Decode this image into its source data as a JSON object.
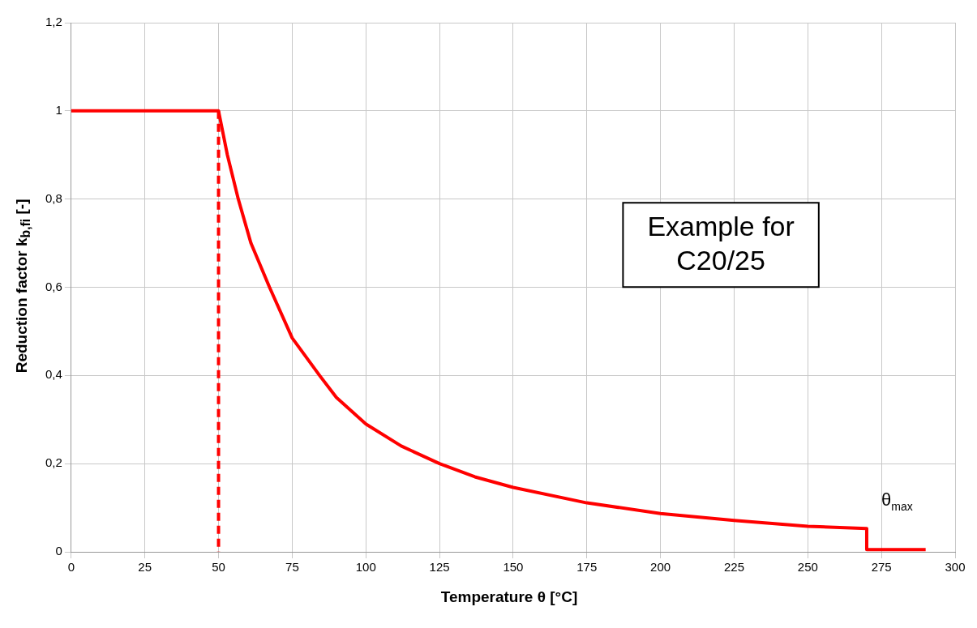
{
  "chart_data": {
    "type": "line",
    "xlabel": "Temperature θ [°C]",
    "ylabel": "Reduction factor k$_{b,fi}$ [-]",
    "xlim": [
      0,
      300
    ],
    "xticks": [
      0,
      25,
      50,
      75,
      100,
      125,
      150,
      175,
      200,
      225,
      250,
      275,
      300
    ],
    "ylim": [
      0,
      1.2
    ],
    "yticks": [
      0,
      {
        "value": 0.2,
        "label": "0,2"
      },
      {
        "value": 0.4,
        "label": "0,4"
      },
      {
        "value": 0.6,
        "label": "0,6"
      },
      {
        "value": 0.8,
        "label": "0,8"
      },
      1,
      {
        "value": 1.2,
        "label": "1,2"
      }
    ],
    "grid": true,
    "marker": "none",
    "series": [
      {
        "color": "#ff0000",
        "line_style": "solid",
        "x": [
          0,
          50,
          53,
          56.7,
          61,
          67.3,
          75,
          84.3,
          90,
          100,
          112,
          125,
          137,
          150,
          175,
          200,
          225,
          250,
          270,
          270,
          290
        ],
        "values": [
          1,
          1,
          0.9,
          0.8,
          0.7,
          0.6,
          0.485,
          0.4,
          0.35,
          0.29,
          0.24,
          0.2,
          0.17,
          0.146,
          0.111,
          0.087,
          0.071,
          0.058,
          0.053,
          0.005,
          0.005
        ]
      },
      {
        "color": "#ff0000",
        "line_style": "dashed",
        "x": [
          50,
          50
        ],
        "values": [
          1,
          0
        ]
      }
    ],
    "annotations": [
      "Example for C20/25",
      {
        "text": "θ$_{max}$",
        "x": 270,
        "y": 0.053
      }
    ]
  }
}
